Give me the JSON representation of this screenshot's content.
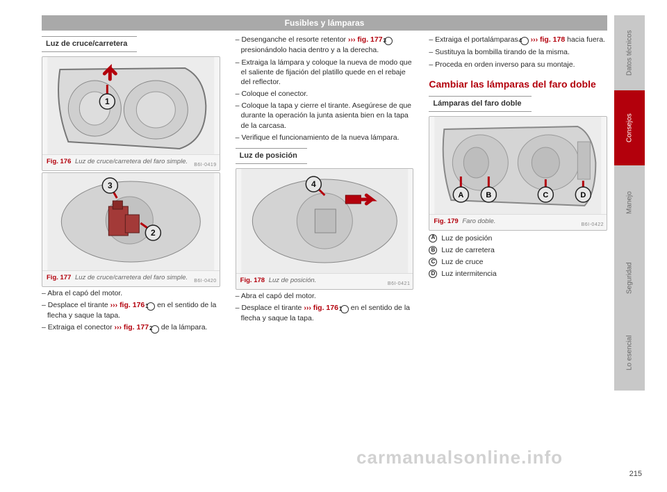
{
  "header": "Fusibles y lámparas",
  "pagenum": "215",
  "watermark": "carmanualsonline.info",
  "tabs": [
    {
      "label": "Datos técnicos",
      "bg": "#c8c8c8",
      "fg": "#6a6a6a"
    },
    {
      "label": "Consejos",
      "bg": "#b3000c",
      "fg": "#ffffff"
    },
    {
      "label": "Manejo",
      "bg": "#c8c8c8",
      "fg": "#6a6a6a"
    },
    {
      "label": "Seguridad",
      "bg": "#c8c8c8",
      "fg": "#6a6a6a"
    },
    {
      "label": "Lo esencial",
      "bg": "#c8c8c8",
      "fg": "#6a6a6a"
    }
  ],
  "col1": {
    "sub1": "Luz de cruce/carretera",
    "fig176": {
      "num": "Fig. 176",
      "caption": "Luz de cruce/carretera del faro simple.",
      "imgnum": "B6I-0419",
      "marker_color": "#e7e7e7",
      "accent": "#b3000c"
    },
    "fig177": {
      "num": "Fig. 177",
      "caption": "Luz de cruce/carretera del faro simple.",
      "imgnum": "B6I-0420",
      "marker_color": "#e7e7e7",
      "accent": "#b3000c"
    },
    "li1": "Abra el capó del motor.",
    "li2a": "Desplace el tirante ",
    "li2ref": "››› fig. 176",
    "li2b": " en el sentido de la flecha y saque la tapa.",
    "li3a": "Extraiga el conector ",
    "li3ref": "››› fig. 177",
    "li3b": " de la lámpara."
  },
  "col2": {
    "li4a": "Desenganche el resorte retentor ",
    "li4ref": "››› fig. 177",
    "li4b": " presionándolo hacia dentro y a la derecha.",
    "li5": "Extraiga la lámpara y coloque la nueva de modo que el saliente de fijación del platillo quede en el rebaje del reflector.",
    "li6": "Coloque el conector.",
    "li7": "Coloque la tapa y cierre el tirante. Asegúrese de que durante la operación la junta asienta bien en la tapa de la carcasa.",
    "li8": "Verifique el funcionamiento de la nueva lámpara.",
    "sub2": "Luz de posición",
    "fig178": {
      "num": "Fig. 178",
      "caption": "Luz de posición.",
      "imgnum": "B6I-0421",
      "marker_color": "#e7e7e7",
      "accent": "#b3000c"
    },
    "li9": "Abra el capó del motor.",
    "li10a": "Desplace el tirante ",
    "li10ref": "››› fig. 176",
    "li10b": " en el sentido de la flecha y saque la tapa."
  },
  "col3": {
    "li11a": "Extraiga el portalámparas ",
    "li11ref": "››› fig. 178",
    "li11b": " hacia fuera.",
    "li12": "Sustituya la bombilla tirando de la misma.",
    "li13": "Proceda en orden inverso para su montaje.",
    "section": "Cambiar las lámparas del faro doble",
    "sub3": "Lámparas del faro doble",
    "fig179": {
      "num": "Fig. 179",
      "caption": "Faro doble.",
      "imgnum": "B6I-0422",
      "marker_color": "#e7e7e7",
      "accent": "#b3000c"
    },
    "legA": "Luz de posición",
    "legB": "Luz de carretera",
    "legC": "Luz de cruce",
    "legD": "Luz intermitencia"
  },
  "markers": {
    "n1": "1",
    "n2": "2",
    "n3": "3",
    "n4": "4",
    "lA": "A",
    "lB": "B",
    "lC": "C",
    "lD": "D"
  }
}
